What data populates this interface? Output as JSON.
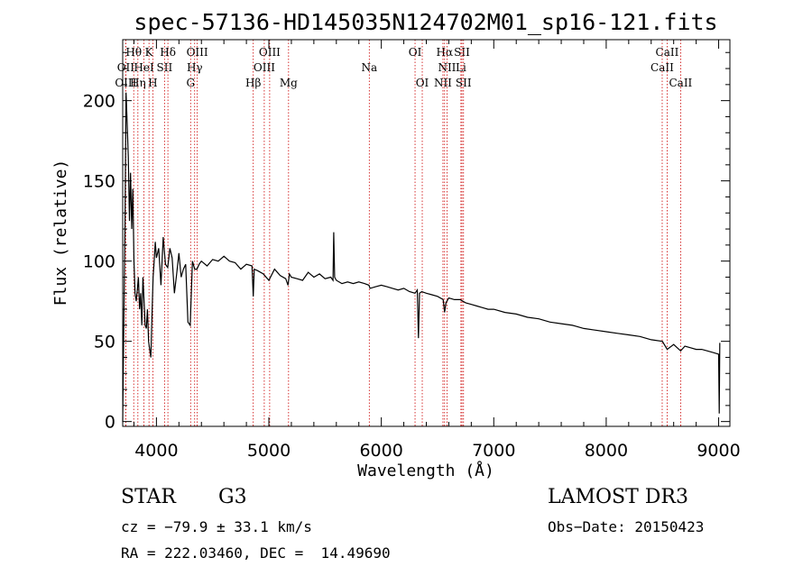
{
  "chart_data": {
    "type": "line",
    "title": "spec-57136-HD145035N124702M01_sp16-121.fits",
    "xlabel": "Wavelength (Å)",
    "ylabel": "Flux (relative)",
    "xlim": [
      3700,
      9100
    ],
    "ylim": [
      -3,
      238
    ],
    "xticks": [
      4000,
      5000,
      6000,
      7000,
      8000,
      9000
    ],
    "yticks": [
      0,
      50,
      100,
      150,
      200
    ],
    "series": [
      {
        "name": "spectrum",
        "x": [
          3700,
          3710,
          3720,
          3730,
          3740,
          3750,
          3760,
          3770,
          3780,
          3790,
          3800,
          3810,
          3820,
          3830,
          3840,
          3850,
          3860,
          3870,
          3880,
          3890,
          3900,
          3910,
          3920,
          3930,
          3940,
          3950,
          3960,
          3970,
          3980,
          3990,
          4000,
          4020,
          4040,
          4060,
          4080,
          4100,
          4120,
          4140,
          4160,
          4180,
          4200,
          4220,
          4240,
          4260,
          4280,
          4300,
          4320,
          4340,
          4360,
          4380,
          4400,
          4450,
          4500,
          4550,
          4600,
          4650,
          4700,
          4750,
          4800,
          4850,
          4861,
          4870,
          4900,
          4950,
          5000,
          5050,
          5100,
          5150,
          5170,
          5183,
          5200,
          5250,
          5300,
          5350,
          5400,
          5450,
          5500,
          5550,
          5570,
          5577,
          5585,
          5600,
          5650,
          5700,
          5750,
          5800,
          5850,
          5890,
          5900,
          5950,
          6000,
          6050,
          6100,
          6150,
          6200,
          6250,
          6300,
          6320,
          6330,
          6340,
          6360,
          6400,
          6450,
          6500,
          6550,
          6563,
          6575,
          6600,
          6650,
          6700,
          6750,
          6800,
          6850,
          6900,
          6950,
          7000,
          7100,
          7200,
          7300,
          7400,
          7500,
          7600,
          7700,
          7800,
          7900,
          8000,
          8100,
          8200,
          8300,
          8400,
          8500,
          8542,
          8600,
          8662,
          8700,
          8750,
          8800,
          8850,
          8900,
          8950,
          9000,
          9005,
          9010
        ],
        "values": [
          0,
          60,
          120,
          205,
          185,
          165,
          125,
          155,
          120,
          145,
          100,
          80,
          75,
          82,
          90,
          70,
          80,
          60,
          90,
          75,
          60,
          58,
          70,
          50,
          45,
          40,
          65,
          90,
          100,
          112,
          102,
          108,
          85,
          115,
          98,
          96,
          108,
          102,
          80,
          92,
          105,
          90,
          95,
          98,
          62,
          60,
          100,
          95,
          95,
          98,
          100,
          97,
          101,
          100,
          103,
          100,
          99,
          95,
          98,
          97,
          78,
          95,
          94,
          92,
          88,
          95,
          91,
          89,
          85,
          92,
          90,
          89,
          88,
          93,
          90,
          92,
          89,
          90,
          88,
          118,
          90,
          88,
          86,
          87,
          86,
          87,
          86,
          85,
          83,
          84,
          85,
          84,
          83,
          82,
          83,
          81,
          80,
          82,
          52,
          80,
          81,
          80,
          79,
          78,
          76,
          68,
          74,
          77,
          76,
          76,
          74,
          73,
          72,
          71,
          70,
          70,
          68,
          67,
          65,
          64,
          62,
          61,
          60,
          58,
          57,
          56,
          55,
          54,
          53,
          51,
          50,
          45,
          48,
          44,
          47,
          46,
          45,
          45,
          44,
          43,
          42,
          5,
          49
        ],
        "color": "#000000"
      }
    ],
    "spectral_lines": [
      {
        "label": "Hθ",
        "wavelength": 3798,
        "row": 0
      },
      {
        "label": "K",
        "wavelength": 3934,
        "row": 0
      },
      {
        "label": "Hδ",
        "wavelength": 4102,
        "row": 0
      },
      {
        "label": "OIII",
        "wavelength": 4363,
        "row": 0
      },
      {
        "label": "OIII",
        "wavelength": 5007,
        "row": 0
      },
      {
        "label": "OI",
        "wavelength": 6300,
        "row": 0
      },
      {
        "label": "Hα",
        "wavelength": 6563,
        "row": 0
      },
      {
        "label": "SII",
        "wavelength": 6717,
        "row": 0
      },
      {
        "label": "CaII",
        "wavelength": 8542,
        "row": 0
      },
      {
        "label": "OII",
        "wavelength": 3727,
        "row": 1
      },
      {
        "label": "HeI",
        "wavelength": 3889,
        "row": 1
      },
      {
        "label": "SII",
        "wavelength": 4072,
        "row": 1
      },
      {
        "label": "Hγ",
        "wavelength": 4340,
        "row": 1
      },
      {
        "label": "OIII",
        "wavelength": 4959,
        "row": 1
      },
      {
        "label": "Na",
        "wavelength": 5893,
        "row": 1
      },
      {
        "label": "NII",
        "wavelength": 6584,
        "row": 1
      },
      {
        "label": "Li",
        "wavelength": 6708,
        "row": 1
      },
      {
        "label": "CaII",
        "wavelength": 8498,
        "row": 1
      },
      {
        "label": "OIII",
        "wavelength": 3727,
        "row": 2
      },
      {
        "label": "Hη",
        "wavelength": 3835,
        "row": 2
      },
      {
        "label": "H",
        "wavelength": 3968,
        "row": 2
      },
      {
        "label": "G",
        "wavelength": 4304,
        "row": 2
      },
      {
        "label": "Hβ",
        "wavelength": 4861,
        "row": 2
      },
      {
        "label": "Mg",
        "wavelength": 5175,
        "row": 2
      },
      {
        "label": "OI",
        "wavelength": 6364,
        "row": 2
      },
      {
        "label": "NII",
        "wavelength": 6548,
        "row": 2
      },
      {
        "label": "SII",
        "wavelength": 6731,
        "row": 2
      },
      {
        "label": "CaII",
        "wavelength": 8662,
        "row": 2
      }
    ]
  },
  "info": {
    "class": "STAR",
    "subclass": "G3",
    "survey": "LAMOST DR3",
    "cz": "cz = −79.9 ± 33.1 km/s",
    "obs_date": "Obs−Date: 20150423",
    "coords": "RA = 222.03460, DEC =  14.49690"
  }
}
